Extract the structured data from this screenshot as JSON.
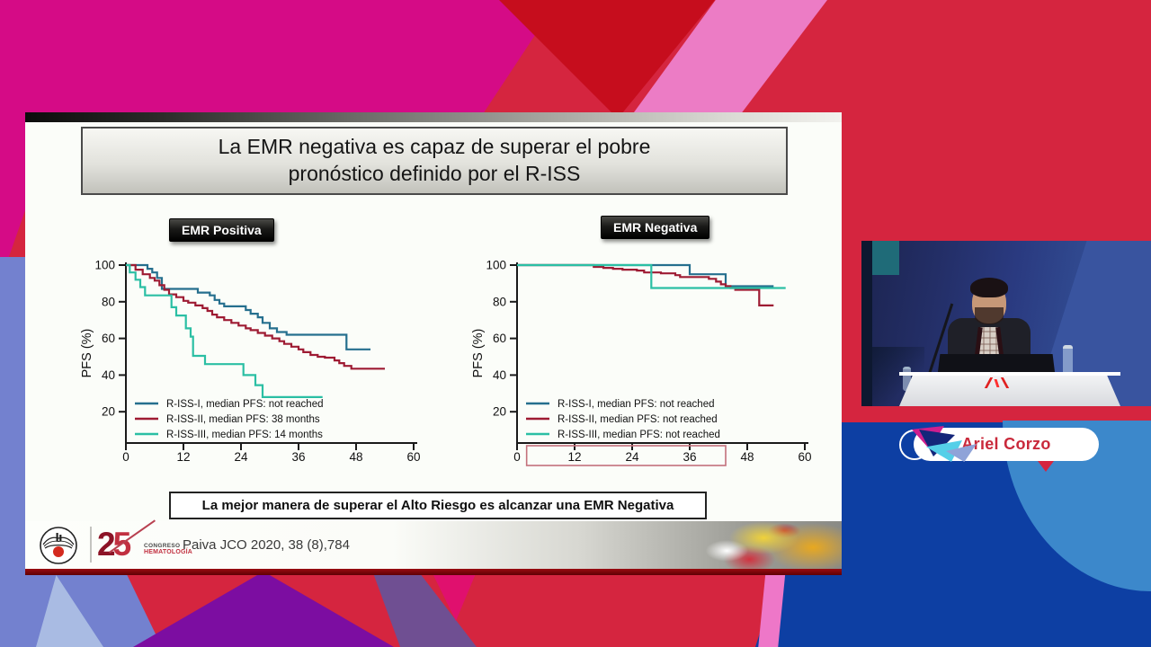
{
  "palette": {
    "magenta": "#d50b86",
    "pink": "#ec7cc5",
    "darkred-tri": "#c60d1d",
    "crimson": "#d5253f",
    "periwinkle": "#7381cf",
    "purple": "#7c0da1",
    "mauve": "#6f4f92",
    "pinkmag": "#e0106e",
    "deepblue": "#0d3fa3",
    "lightblue": "#3c88cb",
    "slide-bg": "#fbfdf9",
    "name-red": "#c9293b"
  },
  "slide": {
    "title_line1": "La EMR negativa  es capaz de superar el pobre",
    "title_line2": "pronóstico definido por el R-ISS",
    "statement": "La mejor manera de superar el Alto Riesgo es alcanzar una EMR Negativa",
    "citation": "Paiva JCO 2020, 38 (8),784",
    "footer": {
      "congress_number": "25",
      "congress_number_2": "2",
      "congress_number_5": "5",
      "congress_word": "CONGRESO",
      "congress_field": "HEMATOLOGÍA"
    }
  },
  "speaker": {
    "name": "Ariel Corzo"
  },
  "chart_data": [
    {
      "type": "line",
      "subtype": "kaplan-meier-step",
      "title": "EMR Positiva",
      "xlabel": "",
      "ylabel": "PFS (%)",
      "xlim": [
        0,
        60
      ],
      "xticks": [
        0,
        12,
        24,
        36,
        48,
        60
      ],
      "yticks": [
        20,
        40,
        60,
        80,
        100
      ],
      "ylim": [
        0,
        100
      ],
      "grid": false,
      "legend_position": "bottom-left-inside",
      "x_axis_highlight_box": false,
      "series": [
        {
          "name": "R-ISS-I, median PFS: not reached",
          "color": "#256f8e",
          "points": [
            [
              0,
              100
            ],
            [
              4.5,
              98
            ],
            [
              5.5,
              96
            ],
            [
              6.5,
              93
            ],
            [
              7.5,
              87
            ],
            [
              15,
              85
            ],
            [
              17.5,
              83.5
            ],
            [
              18.5,
              81
            ],
            [
              19.5,
              79
            ],
            [
              20.5,
              77.5
            ],
            [
              25,
              75.5
            ],
            [
              26,
              73.5
            ],
            [
              27.5,
              71.5
            ],
            [
              28.5,
              68.5
            ],
            [
              30,
              65.5
            ],
            [
              31.5,
              63.5
            ],
            [
              33.5,
              62
            ],
            [
              46,
              54
            ],
            [
              51,
              54
            ]
          ]
        },
        {
          "name": "R-ISS-II, median PFS: 38 months",
          "color": "#9e1b33",
          "points": [
            [
              0,
              100
            ],
            [
              2,
              97.5
            ],
            [
              3.5,
              95
            ],
            [
              5,
              93
            ],
            [
              6,
              91.5
            ],
            [
              7,
              89
            ],
            [
              8,
              86.5
            ],
            [
              9,
              84
            ],
            [
              10.5,
              82.5
            ],
            [
              12,
              80.5
            ],
            [
              13,
              79.5
            ],
            [
              14.5,
              78
            ],
            [
              16,
              76.5
            ],
            [
              17,
              75
            ],
            [
              18,
              73
            ],
            [
              19,
              71.5
            ],
            [
              20.5,
              70
            ],
            [
              22,
              68.5
            ],
            [
              23.5,
              67
            ],
            [
              25,
              65.5
            ],
            [
              26,
              64.5
            ],
            [
              27.5,
              63
            ],
            [
              29,
              61.5
            ],
            [
              30.5,
              60
            ],
            [
              32,
              58.5
            ],
            [
              33,
              57
            ],
            [
              34.5,
              55.5
            ],
            [
              36,
              54
            ],
            [
              37,
              52.5
            ],
            [
              38.5,
              51
            ],
            [
              40,
              50
            ],
            [
              41.5,
              49.5
            ],
            [
              43.5,
              48
            ],
            [
              44.5,
              46.5
            ],
            [
              45.5,
              45
            ],
            [
              47,
              43.5
            ],
            [
              54,
              43.5
            ]
          ]
        },
        {
          "name": "R-ISS-III, median PFS: 14 months",
          "color": "#2bbfa4",
          "points": [
            [
              0,
              100
            ],
            [
              0.8,
              96
            ],
            [
              2,
              92
            ],
            [
              3,
              88
            ],
            [
              4,
              83.5
            ],
            [
              9.5,
              77
            ],
            [
              10.5,
              72.5
            ],
            [
              12.5,
              65.5
            ],
            [
              13.5,
              61
            ],
            [
              14,
              50.5
            ],
            [
              16.5,
              46
            ],
            [
              24.5,
              40
            ],
            [
              27,
              34.5
            ],
            [
              28.5,
              28
            ],
            [
              41,
              28
            ]
          ]
        }
      ]
    },
    {
      "type": "line",
      "subtype": "kaplan-meier-step",
      "title": "EMR Negativa",
      "xlabel": "",
      "ylabel": "PFS (%)",
      "xlim": [
        0,
        60
      ],
      "xticks": [
        0,
        12,
        24,
        36,
        48,
        60
      ],
      "yticks": [
        20,
        40,
        60,
        80,
        100
      ],
      "ylim": [
        0,
        100
      ],
      "grid": false,
      "legend_position": "bottom-left-inside",
      "x_axis_highlight_box": true,
      "box_x_range": [
        2,
        43.5
      ],
      "series": [
        {
          "name": "R-ISS-I, median PFS: not reached",
          "color": "#256f8e",
          "points": [
            [
              0,
              100
            ],
            [
              36,
              95
            ],
            [
              43.5,
              88.5
            ],
            [
              53.5,
              88.5
            ]
          ]
        },
        {
          "name": "R-ISS-II, median PFS: not reached",
          "color": "#9e1b33",
          "points": [
            [
              0,
              100
            ],
            [
              16,
              99
            ],
            [
              18,
              98.5
            ],
            [
              20,
              98
            ],
            [
              22,
              97.5
            ],
            [
              25,
              97
            ],
            [
              26.5,
              96
            ],
            [
              30,
              95.5
            ],
            [
              33,
              94.5
            ],
            [
              34,
              93.5
            ],
            [
              40,
              92.5
            ],
            [
              41.5,
              91
            ],
            [
              42.5,
              89.5
            ],
            [
              43.5,
              88.5
            ],
            [
              44.5,
              87.5
            ],
            [
              45.5,
              86.5
            ],
            [
              50.5,
              78
            ],
            [
              53.5,
              78
            ]
          ]
        },
        {
          "name": "R-ISS-III, median PFS: not reached",
          "color": "#2bbfa4",
          "points": [
            [
              0,
              100
            ],
            [
              28,
              87.5
            ],
            [
              56,
              87.5
            ]
          ]
        }
      ]
    }
  ]
}
